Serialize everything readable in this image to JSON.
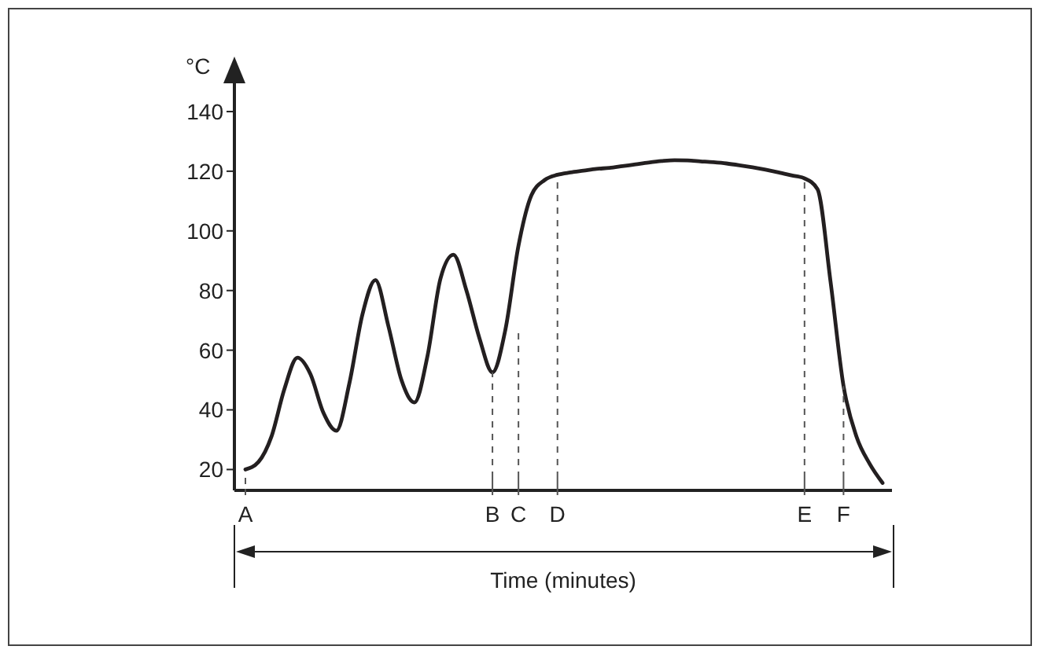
{
  "chart_data": {
    "type": "line",
    "xlabel": "Time (minutes)",
    "ylabel": "°C",
    "categories": [
      "A",
      null,
      null,
      null,
      null,
      null,
      null,
      null,
      null,
      null,
      null,
      null,
      null,
      null,
      null,
      null,
      null,
      null,
      null,
      "B",
      null,
      "C",
      null,
      null,
      "D",
      null,
      null,
      null,
      null,
      null,
      null,
      null,
      null,
      null,
      null,
      null,
      null,
      null,
      null,
      null,
      null,
      null,
      null,
      "E",
      null,
      null,
      "F",
      null,
      null,
      null
    ],
    "ylim": [
      13,
      150
    ],
    "yticks": [
      20,
      40,
      60,
      80,
      100,
      120,
      140
    ],
    "marker": "none",
    "series": [
      {
        "color": "#231f20",
        "line_style": "solid",
        "values": [
          20,
          22.5,
          31,
          47,
          57.5,
          52,
          39,
          33,
          49,
          72,
          83.5,
          68,
          50,
          42.5,
          58,
          84,
          92,
          80,
          64,
          52.6,
          67,
          95,
          112,
          117,
          118.8,
          119.6,
          120.2,
          120.8,
          121.1,
          121.7,
          122.3,
          122.9,
          123.4,
          123.7,
          123.6,
          123.3,
          123,
          122.6,
          122,
          121.3,
          120.5,
          119.6,
          118.6,
          117.6,
          114,
          83,
          48,
          31,
          22,
          15.5
        ]
      }
    ],
    "ref_lines": [
      {
        "axis": "x",
        "value": "B",
        "color": "#555555",
        "line_style": "dashed"
      },
      {
        "axis": "x",
        "value": "C",
        "color": "#555555",
        "line_style": "dashed"
      },
      {
        "axis": "x",
        "value": "D",
        "color": "#555555",
        "line_style": "dashed"
      },
      {
        "axis": "x",
        "value": "E",
        "color": "#555555",
        "line_style": "dashed"
      },
      {
        "axis": "x",
        "value": "F",
        "color": "#555555",
        "line_style": "dashed"
      }
    ]
  }
}
